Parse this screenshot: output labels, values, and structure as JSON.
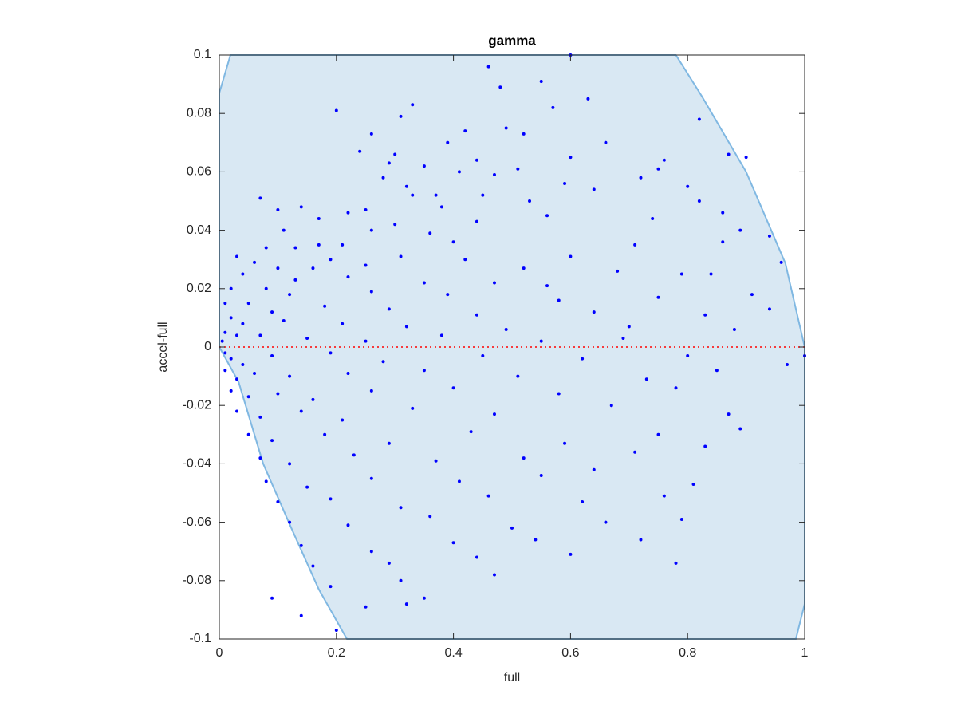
{
  "chart_data": {
    "type": "scatter",
    "title": "gamma",
    "xlabel": "full",
    "ylabel": "accel-full",
    "xlim": [
      0,
      1
    ],
    "ylim": [
      -0.1,
      0.1
    ],
    "xticks": [
      0,
      0.2,
      0.4,
      0.6,
      0.8,
      1
    ],
    "yticks": [
      -0.1,
      -0.08,
      -0.06,
      -0.04,
      -0.02,
      0,
      0.02,
      0.04,
      0.06,
      0.08,
      0.1
    ],
    "color": "#0000ff",
    "region": {
      "color": "#d9e8f3",
      "edge_color": "#80b8e2",
      "x": [
        0,
        0.033,
        0.075,
        0.123,
        0.17,
        0.218,
        0.985,
        1,
        1,
        0.967,
        0.9,
        0.824,
        0.78,
        0.019,
        0
      ],
      "y": [
        0,
        -0.012,
        -0.04,
        -0.062,
        -0.083,
        -0.1,
        -0.1,
        -0.088,
        0,
        0.0287,
        0.06,
        0.086,
        0.1,
        0.1,
        0.087
      ]
    },
    "reference_line": {
      "y": 0,
      "color": "#ff0000"
    },
    "x": [
      0.46,
      0.6,
      0.55,
      0.48,
      0.63,
      0.33,
      0.2,
      0.57,
      0.31,
      0.82,
      0.49,
      0.42,
      0.26,
      0.52,
      0.39,
      0.66,
      0.87,
      0.24,
      0.3,
      0.44,
      0.6,
      0.76,
      0.9,
      0.29,
      0.35,
      0.41,
      0.51,
      0.75,
      0.28,
      0.47,
      0.72,
      0.32,
      0.59,
      0.8,
      0.33,
      0.37,
      0.45,
      0.53,
      0.64,
      0.82,
      0.07,
      0.1,
      0.14,
      0.25,
      0.22,
      0.38,
      0.86,
      0.17,
      0.3,
      0.44,
      0.56,
      0.74,
      0.89,
      0.11,
      0.26,
      0.36,
      0.17,
      0.21,
      0.4,
      0.71,
      0.86,
      0.94,
      0.96,
      0.08,
      0.13,
      0.31,
      0.42,
      0.6,
      0.19,
      0.25,
      0.03,
      0.06,
      0.1,
      0.16,
      0.52,
      0.68,
      0.79,
      0.84,
      0.04,
      0.13,
      0.22,
      0.35,
      0.47,
      0.56,
      0.02,
      0.08,
      0.12,
      0.26,
      0.39,
      0.58,
      0.75,
      0.91,
      0.01,
      0.05,
      0.09,
      0.18,
      0.29,
      0.44,
      0.64,
      0.83,
      0.94,
      0.02,
      0.04,
      0.11,
      0.21,
      0.32,
      0.49,
      0.7,
      0.88,
      0.01,
      0.03,
      0.07,
      0.15,
      0.25,
      0.38,
      0.55,
      0.69,
      0.005,
      0.01,
      0.02,
      0.04,
      0.09,
      0.19,
      0.28,
      0.45,
      0.62,
      0.8,
      0.97,
      0.01,
      0.03,
      0.06,
      0.12,
      0.22,
      0.35,
      0.51,
      0.73,
      0.85,
      0.02,
      0.05,
      0.1,
      0.16,
      0.26,
      0.4,
      0.58,
      0.78,
      0.03,
      0.07,
      0.14,
      0.21,
      0.33,
      0.47,
      0.67,
      0.87,
      0.05,
      0.09,
      0.18,
      0.29,
      0.43,
      0.59,
      0.75,
      0.89,
      0.07,
      0.12,
      0.23,
      0.37,
      0.52,
      0.71,
      0.83,
      0.08,
      0.15,
      0.26,
      0.41,
      0.55,
      0.64,
      0.81,
      0.1,
      0.19,
      0.31,
      0.46,
      0.62,
      0.76,
      0.12,
      0.22,
      0.36,
      0.5,
      0.66,
      0.79,
      0.14,
      0.26,
      0.4,
      0.54,
      0.72,
      0.16,
      0.29,
      0.44,
      0.6,
      0.78,
      0.09,
      0.19,
      0.31,
      0.47,
      0.14,
      0.25,
      0.35,
      0.2,
      0.32,
      1.0
    ],
    "y": [
      0.096,
      0.1,
      0.091,
      0.089,
      0.085,
      0.083,
      0.081,
      0.082,
      0.079,
      0.078,
      0.075,
      0.074,
      0.073,
      0.073,
      0.07,
      0.07,
      0.066,
      0.067,
      0.066,
      0.064,
      0.065,
      0.064,
      0.065,
      0.063,
      0.062,
      0.06,
      0.061,
      0.061,
      0.058,
      0.059,
      0.058,
      0.055,
      0.056,
      0.055,
      0.052,
      0.052,
      0.052,
      0.05,
      0.054,
      0.05,
      0.051,
      0.047,
      0.048,
      0.047,
      0.046,
      0.048,
      0.046,
      0.044,
      0.042,
      0.043,
      0.045,
      0.044,
      0.04,
      0.04,
      0.04,
      0.039,
      0.035,
      0.035,
      0.036,
      0.035,
      0.036,
      0.038,
      0.029,
      0.034,
      0.034,
      0.031,
      0.03,
      0.031,
      0.03,
      0.028,
      0.031,
      0.029,
      0.027,
      0.027,
      0.027,
      0.026,
      0.025,
      0.025,
      0.025,
      0.023,
      0.024,
      0.022,
      0.022,
      0.021,
      0.02,
      0.02,
      0.018,
      0.019,
      0.018,
      0.016,
      0.017,
      0.018,
      0.015,
      0.015,
      0.012,
      0.014,
      0.013,
      0.011,
      0.012,
      0.011,
      0.013,
      0.01,
      0.008,
      0.009,
      0.008,
      0.007,
      0.006,
      0.007,
      0.006,
      0.005,
      0.004,
      0.004,
      0.003,
      0.002,
      0.004,
      0.002,
      0.003,
      0.002,
      -0.002,
      -0.004,
      -0.006,
      -0.003,
      -0.002,
      -0.005,
      -0.003,
      -0.004,
      -0.003,
      -0.006,
      -0.008,
      -0.011,
      -0.009,
      -0.01,
      -0.009,
      -0.008,
      -0.01,
      -0.011,
      -0.008,
      -0.015,
      -0.017,
      -0.016,
      -0.018,
      -0.015,
      -0.014,
      -0.016,
      -0.014,
      -0.022,
      -0.024,
      -0.022,
      -0.025,
      -0.021,
      -0.023,
      -0.02,
      -0.023,
      -0.03,
      -0.032,
      -0.03,
      -0.033,
      -0.029,
      -0.033,
      -0.03,
      -0.028,
      -0.038,
      -0.04,
      -0.037,
      -0.039,
      -0.038,
      -0.036,
      -0.034,
      -0.046,
      -0.048,
      -0.045,
      -0.046,
      -0.044,
      -0.042,
      -0.047,
      -0.053,
      -0.052,
      -0.055,
      -0.051,
      -0.053,
      -0.051,
      -0.06,
      -0.061,
      -0.058,
      -0.062,
      -0.06,
      -0.059,
      -0.068,
      -0.07,
      -0.067,
      -0.066,
      -0.066,
      -0.075,
      -0.074,
      -0.072,
      -0.071,
      -0.074,
      -0.086,
      -0.082,
      -0.08,
      -0.078,
      -0.092,
      -0.089,
      -0.086,
      -0.097,
      -0.088,
      -0.003
    ]
  }
}
